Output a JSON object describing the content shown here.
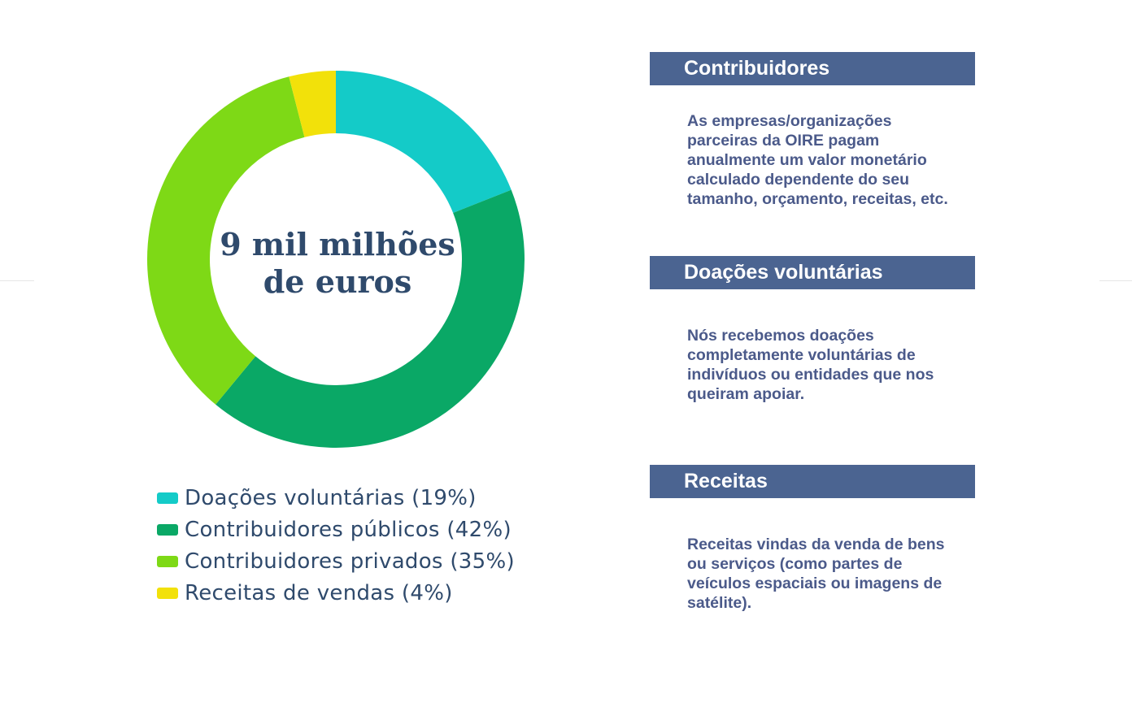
{
  "chart_data": {
    "type": "pie",
    "variant": "donut",
    "center_label": [
      "9 mil milhões",
      "de euros"
    ],
    "slices": [
      {
        "label": "Doações voluntárias (19%)",
        "value": 19,
        "color": "#14cbc8"
      },
      {
        "label": "Contribuidores públicos (42%)",
        "value": 42,
        "color": "#0aa866"
      },
      {
        "label": "Contribuidores privados (35%)",
        "value": 35,
        "color": "#7ed916"
      },
      {
        "label": "Receitas de vendas (4%)",
        "value": 4,
        "color": "#f2e10a"
      }
    ],
    "legend_position": "bottom"
  },
  "sections": [
    {
      "title": "Contribuidores",
      "lines": [
        "As empresas/organizações",
        "parceiras da OIRE pagam",
        "anualmente um valor monetário",
        "calculado dependente do seu",
        "tamanho, orçamento, receitas, etc."
      ]
    },
    {
      "title": "Doações voluntárias",
      "lines": [
        "Nós recebemos doações",
        "completamente voluntárias de",
        "indivíduos ou entidades que nos",
        "queiram apoiar."
      ]
    },
    {
      "title": "Receitas",
      "lines": [
        "Receitas vindas da venda de bens",
        "ou serviços (como partes de",
        "veículos espaciais ou imagens de",
        "satélite)."
      ]
    }
  ],
  "colors": {
    "header_bg": "#4b6491",
    "body_text": "#4b5a8a",
    "title_text": "#2f4a6c"
  }
}
